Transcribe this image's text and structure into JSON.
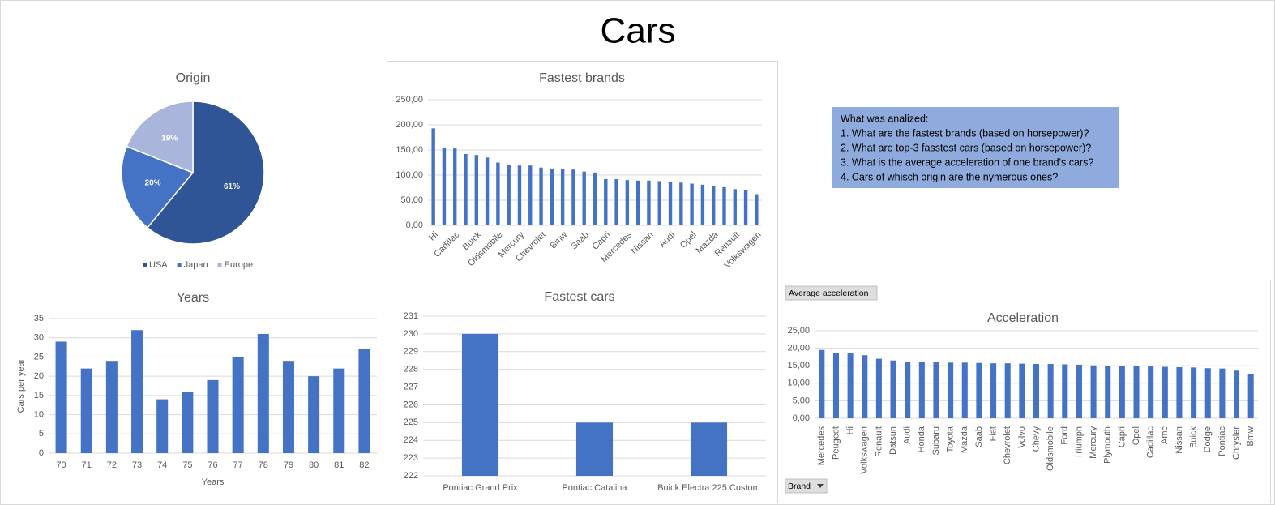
{
  "title": "Cars",
  "notes": {
    "heading": "What was analized:",
    "items": [
      "1. What are the fastest brands (based on horsepower)?",
      "2. What are top-3 fasstest cars (based on horsepower)?",
      "3. What is the average acceleration of one brand's cars?",
      "4. Cars of whisch origin are the nymerous ones?"
    ]
  },
  "controls": {
    "value_field": "Average acceleration",
    "axis_field": "Brand"
  },
  "chart_data": [
    {
      "type": "pie",
      "title": "Origin",
      "categories": [
        "USA",
        "Japan",
        "Europe"
      ],
      "values": [
        61,
        20,
        19
      ],
      "value_labels": [
        "61%",
        "20%",
        "19%"
      ],
      "colors": [
        "#2f5597",
        "#4472c4",
        "#a9b5da"
      ],
      "legend": "bottom"
    },
    {
      "type": "bar",
      "title": "Fastest brands",
      "color": "#4472c4",
      "grid": true,
      "categories": [
        "Hi",
        null,
        "Cadillac",
        null,
        "Buick",
        null,
        "Oldsmobile",
        null,
        "Mercury",
        null,
        "Chevrolet",
        null,
        "Bmw",
        null,
        "Saab",
        null,
        "Capri",
        null,
        "Mercedes",
        null,
        "Nissan",
        null,
        "Audi",
        null,
        "Opel",
        null,
        "Mazda",
        null,
        "Renault",
        null,
        "Volkswagen"
      ],
      "values": [
        193,
        155,
        153,
        142,
        140,
        135,
        125,
        120,
        119,
        119,
        115,
        113,
        112,
        111,
        107,
        105,
        92,
        92,
        90,
        89,
        89,
        88,
        86,
        85,
        83,
        81,
        79,
        76,
        72,
        70,
        62
      ],
      "ylim": [
        0,
        250
      ],
      "yticks": [
        {
          "value": 0,
          "label": "0,00"
        },
        {
          "value": 50,
          "label": "50,00"
        },
        {
          "value": 100,
          "label": "100,00"
        },
        {
          "value": 150,
          "label": "150,00"
        },
        {
          "value": 200,
          "label": "200,00"
        },
        {
          "value": 250,
          "label": "250,00"
        }
      ]
    },
    {
      "type": "bar",
      "title": "Years",
      "x_label": "Years",
      "y_label": "Cars per year",
      "color": "#4472c4",
      "grid": true,
      "categories": [
        "70",
        "71",
        "72",
        "73",
        "74",
        "75",
        "76",
        "77",
        "78",
        "79",
        "80",
        "81",
        "82"
      ],
      "values": [
        29,
        22,
        24,
        32,
        14,
        16,
        19,
        25,
        31,
        24,
        20,
        22,
        27
      ],
      "ylim": [
        0,
        35
      ],
      "yticks": [
        0,
        5,
        10,
        15,
        20,
        25,
        30,
        35
      ]
    },
    {
      "type": "bar",
      "title": "Fastest cars",
      "color": "#4472c4",
      "grid": true,
      "categories": [
        "Pontiac Grand Prix",
        "Pontiac Catalina",
        "Buick Electra 225 Custom"
      ],
      "values": [
        230,
        225,
        225
      ],
      "ylim": [
        222,
        231
      ],
      "yticks": [
        222,
        223,
        224,
        225,
        226,
        227,
        228,
        229,
        230,
        231
      ]
    },
    {
      "type": "bar",
      "title": "Acceleration",
      "color": "#4472c4",
      "grid": true,
      "categories": [
        "Mercedes",
        "Peugeot",
        "Hi",
        "Volkswagen",
        "Renault",
        "Datsun",
        "Audi",
        "Honda",
        "Subaru",
        "Toyota",
        "Mazda",
        "Saab",
        "Fiat",
        "Chevrolet",
        "Volvo",
        "Chevy",
        "Oldsmobile",
        "Ford",
        "Triumph",
        "Mercury",
        "Plymouth",
        "Capri",
        "Opel",
        "Cadillac",
        "Amc",
        "Nissan",
        "Buick",
        "Dodge",
        "Pontiac",
        "Chrysler",
        "Bmw"
      ],
      "values": [
        19.5,
        18.6,
        18.5,
        18.0,
        17.0,
        16.5,
        16.2,
        16.1,
        16.0,
        15.9,
        15.9,
        15.8,
        15.7,
        15.7,
        15.6,
        15.5,
        15.5,
        15.4,
        15.3,
        15.1,
        15.0,
        15.0,
        14.9,
        14.8,
        14.7,
        14.6,
        14.5,
        14.3,
        14.2,
        13.6,
        12.7
      ],
      "ylim": [
        0,
        25
      ],
      "yticks": [
        {
          "value": 0,
          "label": "0,00"
        },
        {
          "value": 5,
          "label": "5,00"
        },
        {
          "value": 10,
          "label": "10,00"
        },
        {
          "value": 15,
          "label": "15,00"
        },
        {
          "value": 20,
          "label": "20,00"
        },
        {
          "value": 25,
          "label": "25,00"
        }
      ]
    }
  ]
}
